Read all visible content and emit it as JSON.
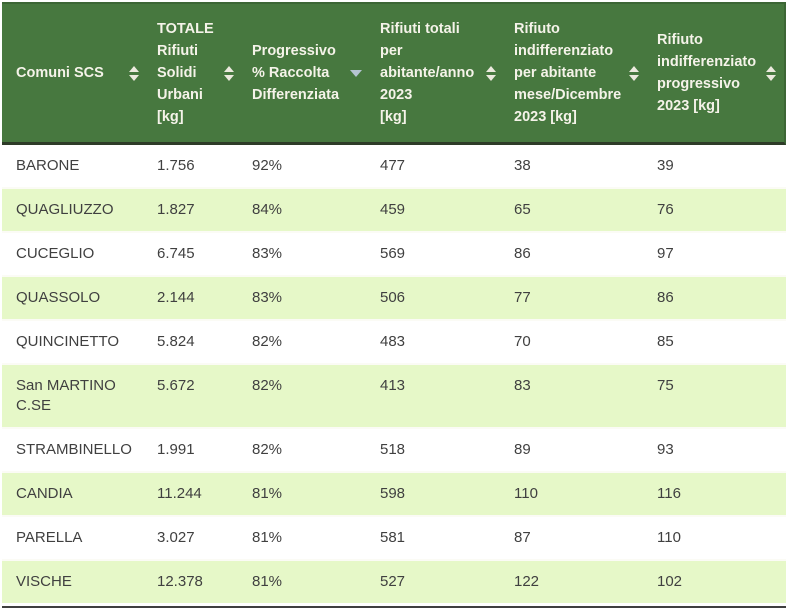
{
  "table": {
    "columns": [
      {
        "id": "comuni-scs",
        "label": "Comuni SCS",
        "sort": "both"
      },
      {
        "id": "totale-rifiuti-solidi-urbani",
        "label": "TOTALE\nRifiuti\nSolidi\nUrbani\n[kg]",
        "sort": "both"
      },
      {
        "id": "progressivo-raccolta-differenziata",
        "label": "Progressivo\n% Raccolta\nDifferenziata",
        "sort": "desc"
      },
      {
        "id": "rifiuti-totali-per-abitante",
        "label": "Rifiuti totali\nper\nabitante/anno\n2023\n[kg]",
        "sort": "both"
      },
      {
        "id": "indifferenziato-per-abitante-mese",
        "label": "Rifiuto\nindifferenziato\nper abitante\nmese/Dicembre\n2023 [kg]",
        "sort": "both"
      },
      {
        "id": "indifferenziato-progressivo",
        "label": "Rifiuto\nindifferenziato\nprogressivo\n2023 [kg]",
        "sort": "both"
      }
    ],
    "colors": {
      "header_bg": "#47783f",
      "header_text": "#f5f3e9",
      "row_alt_bg": "#e6f8c8",
      "row_bg": "#ffffff",
      "body_text": "#404040",
      "sort_icon": "#eceade",
      "sort_icon_active": "#b5c4d1",
      "table_bottom_border": "#3f3f3f"
    }
  },
  "chart_data": {
    "type": "table",
    "title": "",
    "columns": [
      "Comuni SCS",
      "TOTALE Rifiuti Solidi Urbani [kg]",
      "Progressivo % Raccolta Differenziata",
      "Rifiuti totali per abitante/anno 2023 [kg]",
      "Rifiuto indifferenziato per abitante mese/Dicembre 2023 [kg]",
      "Rifiuto indifferenziato progressivo 2023 [kg]"
    ],
    "sorted_by": "Progressivo % Raccolta Differenziata",
    "sort_direction": "desc",
    "rows": [
      [
        "BARONE",
        "1.756",
        "92%",
        "477",
        "38",
        "39"
      ],
      [
        "QUAGLIUZZO",
        "1.827",
        "84%",
        "459",
        "65",
        "76"
      ],
      [
        "CUCEGLIO",
        "6.745",
        "83%",
        "569",
        "86",
        "97"
      ],
      [
        "QUASSOLO",
        "2.144",
        "83%",
        "506",
        "77",
        "86"
      ],
      [
        "QUINCINETTO",
        "5.824",
        "82%",
        "483",
        "70",
        "85"
      ],
      [
        "San MARTINO C.SE",
        "5.672",
        "82%",
        "413",
        "83",
        "75"
      ],
      [
        "STRAMBINELLO",
        "1.991",
        "82%",
        "518",
        "89",
        "93"
      ],
      [
        "CANDIA",
        "11.244",
        "81%",
        "598",
        "110",
        "116"
      ],
      [
        "PARELLA",
        "3.027",
        "81%",
        "581",
        "87",
        "110"
      ],
      [
        "VISCHE",
        "12.378",
        "81%",
        "527",
        "122",
        "102"
      ]
    ]
  }
}
